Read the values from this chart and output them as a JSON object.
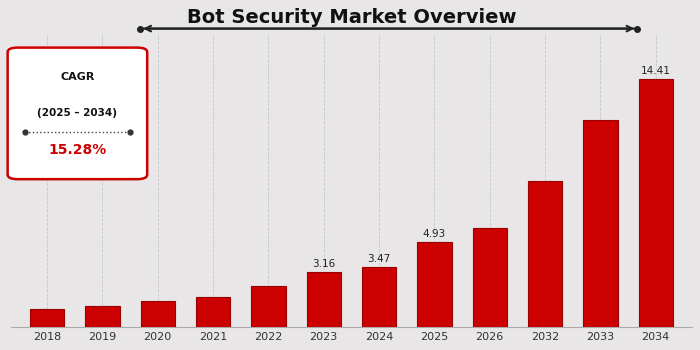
{
  "title": "Bot Security Market Overview",
  "categories": [
    "2018",
    "2019",
    "2020",
    "2021",
    "2022",
    "2023",
    "2024",
    "2025",
    "2026",
    "2032",
    "2033",
    "2034"
  ],
  "values": [
    1.05,
    1.22,
    1.52,
    1.75,
    2.35,
    3.16,
    3.47,
    4.93,
    5.75,
    8.5,
    12.0,
    14.41
  ],
  "bar_color": "#CC0000",
  "bg_color": "#e8e6e6",
  "label_indices": [
    5,
    6,
    7,
    11
  ],
  "label_values": [
    "3.16",
    "3.47",
    "4.93",
    "14.41"
  ],
  "cagr_text1": "CAGR",
  "cagr_text2": "(2025 – 2034)",
  "cagr_value": "15.28%",
  "title_fontsize": 14,
  "ylim_max": 17
}
